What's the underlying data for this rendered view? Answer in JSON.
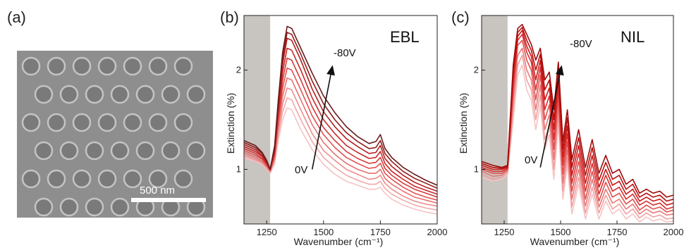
{
  "panel_a": {
    "label": "(a)",
    "scalebar_label": "500 nm"
  },
  "chart_data": [
    {
      "type": "line",
      "panel_label": "(b)",
      "corner_label": "EBL",
      "xlabel": "Wavenumber (cm⁻¹)",
      "ylabel": "Extinction (%)",
      "xlim": [
        1150,
        2000
      ],
      "ylim": [
        0.45,
        2.55
      ],
      "xticks": [
        1250,
        1500,
        1750,
        2000
      ],
      "yticks": [
        1,
        2
      ],
      "shaded_region": [
        1150,
        1265
      ],
      "annotation_top": "-80V",
      "annotation_bottom": "0V",
      "arrow_from": [
        1450,
        1.0
      ],
      "arrow_to": [
        1540,
        2.05
      ],
      "series_colors": [
        "#f6c3c3",
        "#f1a8a8",
        "#ec8c8c",
        "#e67070",
        "#e05252",
        "#d63a3a",
        "#c82828",
        "#b31e1e",
        "#8e1c1c",
        "#6a1a1a"
      ],
      "x": [
        1150,
        1200,
        1230,
        1250,
        1265,
        1285,
        1300,
        1320,
        1340,
        1360,
        1380,
        1400,
        1450,
        1500,
        1550,
        1600,
        1650,
        1700,
        1730,
        1750,
        1770,
        1800,
        1850,
        1900,
        1950,
        2000
      ],
      "series": [
        {
          "values": [
            1.12,
            1.08,
            1.05,
            1.0,
            0.96,
            1.06,
            1.28,
            1.5,
            1.62,
            1.6,
            1.5,
            1.4,
            1.2,
            1.05,
            0.95,
            0.88,
            0.84,
            0.8,
            0.8,
            0.82,
            0.76,
            0.7,
            0.64,
            0.6,
            0.57,
            0.55
          ]
        },
        {
          "values": [
            1.13,
            1.09,
            1.06,
            1.01,
            0.97,
            1.08,
            1.33,
            1.58,
            1.72,
            1.7,
            1.6,
            1.5,
            1.28,
            1.12,
            1.02,
            0.94,
            0.89,
            0.85,
            0.85,
            0.88,
            0.81,
            0.75,
            0.69,
            0.64,
            0.61,
            0.59
          ]
        },
        {
          "values": [
            1.15,
            1.1,
            1.07,
            1.02,
            0.98,
            1.1,
            1.38,
            1.66,
            1.82,
            1.8,
            1.7,
            1.6,
            1.36,
            1.19,
            1.09,
            1.0,
            0.95,
            0.9,
            0.91,
            0.94,
            0.86,
            0.8,
            0.73,
            0.68,
            0.65,
            0.63
          ]
        },
        {
          "values": [
            1.17,
            1.12,
            1.08,
            1.03,
            0.98,
            1.12,
            1.43,
            1.74,
            1.92,
            1.9,
            1.8,
            1.7,
            1.45,
            1.27,
            1.15,
            1.06,
            1.0,
            0.96,
            0.96,
            1.0,
            0.91,
            0.85,
            0.78,
            0.72,
            0.69,
            0.66
          ]
        },
        {
          "values": [
            1.19,
            1.14,
            1.1,
            1.04,
            0.99,
            1.14,
            1.48,
            1.82,
            2.02,
            2.0,
            1.9,
            1.8,
            1.54,
            1.35,
            1.22,
            1.12,
            1.06,
            1.01,
            1.02,
            1.06,
            0.96,
            0.9,
            0.82,
            0.76,
            0.72,
            0.69
          ]
        },
        {
          "values": [
            1.21,
            1.16,
            1.11,
            1.05,
            1.0,
            1.16,
            1.52,
            1.9,
            2.12,
            2.1,
            2.0,
            1.9,
            1.63,
            1.42,
            1.29,
            1.18,
            1.11,
            1.06,
            1.07,
            1.12,
            1.01,
            0.94,
            0.86,
            0.8,
            0.76,
            0.72
          ]
        },
        {
          "values": [
            1.23,
            1.18,
            1.13,
            1.06,
            1.0,
            1.18,
            1.56,
            1.98,
            2.22,
            2.2,
            2.1,
            2.0,
            1.72,
            1.5,
            1.36,
            1.24,
            1.17,
            1.11,
            1.12,
            1.18,
            1.06,
            0.98,
            0.9,
            0.83,
            0.79,
            0.75
          ]
        },
        {
          "values": [
            1.25,
            1.2,
            1.14,
            1.07,
            1.0,
            1.2,
            1.6,
            2.06,
            2.32,
            2.3,
            2.2,
            2.1,
            1.81,
            1.58,
            1.43,
            1.31,
            1.23,
            1.16,
            1.17,
            1.24,
            1.11,
            1.03,
            0.94,
            0.87,
            0.82,
            0.78
          ]
        },
        {
          "values": [
            1.27,
            1.22,
            1.16,
            1.08,
            1.0,
            1.22,
            1.64,
            2.12,
            2.38,
            2.36,
            2.26,
            2.16,
            1.89,
            1.66,
            1.5,
            1.37,
            1.28,
            1.21,
            1.22,
            1.29,
            1.16,
            1.08,
            0.98,
            0.91,
            0.86,
            0.81
          ]
        },
        {
          "values": [
            1.29,
            1.24,
            1.17,
            1.09,
            1.0,
            1.24,
            1.68,
            2.18,
            2.44,
            2.42,
            2.32,
            2.22,
            1.97,
            1.74,
            1.57,
            1.43,
            1.33,
            1.26,
            1.28,
            1.35,
            1.21,
            1.12,
            1.02,
            0.95,
            0.89,
            0.84
          ]
        }
      ]
    },
    {
      "type": "line",
      "panel_label": "(c)",
      "corner_label": "NIL",
      "xlabel": "Wavenumber (cm⁻¹)",
      "ylabel": "Extinction (%)",
      "xlim": [
        1150,
        2000
      ],
      "ylim": [
        0.45,
        2.55
      ],
      "xticks": [
        1250,
        1500,
        1750,
        2000
      ],
      "yticks": [
        1,
        2
      ],
      "shaded_region": [
        1150,
        1265
      ],
      "annotation_top": "-80V",
      "annotation_bottom": "0V",
      "arrow_from": [
        1410,
        1.02
      ],
      "arrow_to": [
        1505,
        2.05
      ],
      "series_colors": [
        "#f6c3c3",
        "#f0a0a0",
        "#e87878",
        "#e05050",
        "#d83030",
        "#cc1a1a",
        "#b81010",
        "#9e0c0c"
      ],
      "x": [
        1150,
        1200,
        1240,
        1265,
        1290,
        1310,
        1330,
        1350,
        1370,
        1390,
        1410,
        1430,
        1450,
        1470,
        1490,
        1510,
        1530,
        1550,
        1580,
        1610,
        1640,
        1670,
        1700,
        1730,
        1760,
        1790,
        1820,
        1850,
        1880,
        1910,
        1940,
        1970,
        2000
      ],
      "series": [
        {
          "values": [
            0.92,
            0.88,
            0.9,
            0.95,
            1.5,
            1.95,
            2.05,
            1.8,
            1.7,
            1.4,
            1.65,
            1.2,
            1.35,
            0.9,
            1.45,
            0.7,
            1.05,
            0.55,
            0.85,
            0.5,
            0.75,
            0.5,
            0.68,
            0.55,
            0.6,
            0.5,
            0.55,
            0.47,
            0.52,
            0.48,
            0.5,
            0.47,
            0.48
          ]
        },
        {
          "values": [
            0.95,
            0.9,
            0.92,
            0.97,
            1.6,
            2.05,
            2.15,
            1.9,
            1.8,
            1.5,
            1.75,
            1.3,
            1.45,
            1.0,
            1.55,
            0.78,
            1.12,
            0.62,
            0.92,
            0.56,
            0.82,
            0.56,
            0.74,
            0.6,
            0.65,
            0.55,
            0.6,
            0.51,
            0.56,
            0.52,
            0.54,
            0.5,
            0.51
          ]
        },
        {
          "values": [
            0.98,
            0.93,
            0.94,
            0.99,
            1.7,
            2.15,
            2.22,
            2.0,
            1.9,
            1.6,
            1.85,
            1.4,
            1.55,
            1.1,
            1.65,
            0.86,
            1.2,
            0.7,
            1.0,
            0.63,
            0.9,
            0.62,
            0.8,
            0.66,
            0.7,
            0.6,
            0.65,
            0.55,
            0.6,
            0.56,
            0.58,
            0.54,
            0.55
          ]
        },
        {
          "values": [
            1.0,
            0.96,
            0.96,
            1.0,
            1.8,
            2.25,
            2.3,
            2.1,
            2.0,
            1.7,
            1.95,
            1.5,
            1.65,
            1.2,
            1.75,
            0.95,
            1.28,
            0.78,
            1.08,
            0.7,
            0.98,
            0.68,
            0.87,
            0.72,
            0.76,
            0.65,
            0.7,
            0.59,
            0.64,
            0.6,
            0.62,
            0.57,
            0.59
          ]
        },
        {
          "values": [
            1.02,
            0.98,
            0.98,
            1.01,
            1.88,
            2.3,
            2.36,
            2.18,
            2.08,
            1.8,
            2.03,
            1.6,
            1.74,
            1.3,
            1.84,
            1.04,
            1.36,
            0.86,
            1.16,
            0.78,
            1.06,
            0.75,
            0.94,
            0.78,
            0.82,
            0.7,
            0.75,
            0.64,
            0.68,
            0.64,
            0.66,
            0.6,
            0.62
          ]
        },
        {
          "values": [
            1.04,
            1.0,
            1.0,
            1.02,
            1.94,
            2.34,
            2.4,
            2.24,
            2.14,
            1.9,
            2.1,
            1.7,
            1.82,
            1.4,
            1.92,
            1.12,
            1.44,
            0.94,
            1.24,
            0.86,
            1.14,
            0.82,
            1.0,
            0.84,
            0.88,
            0.75,
            0.8,
            0.68,
            0.72,
            0.68,
            0.7,
            0.64,
            0.66
          ]
        },
        {
          "values": [
            1.06,
            1.02,
            1.01,
            1.03,
            2.0,
            2.38,
            2.43,
            2.3,
            2.2,
            2.0,
            2.16,
            1.8,
            1.9,
            1.5,
            2.0,
            1.2,
            1.52,
            1.02,
            1.32,
            0.94,
            1.22,
            0.89,
            1.07,
            0.9,
            0.94,
            0.8,
            0.85,
            0.72,
            0.76,
            0.72,
            0.74,
            0.68,
            0.7
          ]
        },
        {
          "values": [
            1.08,
            1.04,
            1.02,
            1.04,
            2.05,
            2.42,
            2.46,
            2.36,
            2.26,
            2.1,
            2.22,
            1.9,
            1.98,
            1.6,
            2.08,
            1.28,
            1.6,
            1.1,
            1.4,
            1.02,
            1.3,
            0.96,
            1.14,
            0.96,
            1.0,
            0.85,
            0.9,
            0.76,
            0.8,
            0.76,
            0.78,
            0.72,
            0.74
          ]
        }
      ]
    }
  ]
}
